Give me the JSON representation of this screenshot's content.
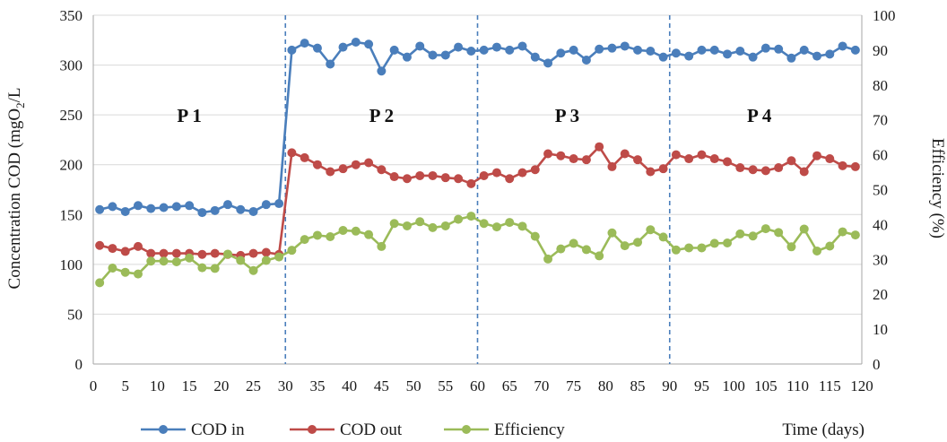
{
  "chart_data": {
    "type": "line",
    "title": "",
    "xlabel": "Time (days)",
    "ylabel": {
      "main": "Concentration COD (mgO",
      "sub": "2",
      "tail": "/L"
    },
    "y2label": "Efficiency (%)",
    "xlim": [
      0,
      120
    ],
    "ylim": [
      0,
      350
    ],
    "y2lim": [
      0,
      100
    ],
    "x_ticks": [
      0,
      5,
      10,
      15,
      20,
      25,
      30,
      35,
      40,
      45,
      50,
      55,
      60,
      65,
      70,
      75,
      80,
      85,
      90,
      95,
      100,
      105,
      110,
      115,
      120
    ],
    "x_tick_labels": [
      "0",
      "5",
      "10",
      "15",
      "20",
      "25",
      "30",
      "35",
      "40",
      "45",
      "50",
      "55",
      "60",
      "65",
      "70",
      "75",
      "80",
      "85",
      "90",
      "95",
      "100",
      "105",
      "110",
      "115",
      "120"
    ],
    "y_ticks": [
      0,
      50,
      100,
      150,
      200,
      250,
      300,
      350
    ],
    "y2_ticks": [
      0,
      10,
      20,
      30,
      40,
      50,
      60,
      70,
      80,
      90,
      100
    ],
    "grid": "horizontal",
    "legend_position": "bottom",
    "phase_dividers": [
      30,
      60,
      90
    ],
    "phase_labels": [
      {
        "label": "P 1",
        "x": 15,
        "y": 250
      },
      {
        "label": "P 2",
        "x": 45,
        "y": 250
      },
      {
        "label": "P 3",
        "x": 74,
        "y": 250
      },
      {
        "label": "P 4",
        "x": 104,
        "y": 250
      }
    ],
    "x": [
      1,
      3,
      5,
      7,
      9,
      11,
      13,
      15,
      17,
      19,
      21,
      23,
      25,
      27,
      29,
      31,
      33,
      35,
      37,
      39,
      41,
      43,
      45,
      47,
      49,
      51,
      53,
      55,
      57,
      59,
      61,
      63,
      65,
      67,
      69,
      71,
      73,
      75,
      77,
      79,
      81,
      83,
      85,
      87,
      89,
      91,
      93,
      95,
      97,
      99,
      101,
      103,
      105,
      107,
      109,
      111,
      113,
      115,
      117,
      119
    ],
    "series": [
      {
        "name": "COD in",
        "axis": "left",
        "color": "#4a7ebb",
        "values": [
          155,
          158,
          153,
          159,
          156,
          157,
          158,
          159,
          152,
          154,
          160,
          155,
          153,
          160,
          161,
          315,
          322,
          317,
          301,
          318,
          323,
          321,
          294,
          315,
          308,
          319,
          310,
          310,
          318,
          314,
          315,
          318,
          315,
          319,
          308,
          302,
          312,
          315,
          305,
          316,
          317,
          319,
          315,
          314,
          308,
          312,
          309,
          315,
          315,
          311,
          314,
          308,
          317,
          316,
          307,
          315,
          309,
          311,
          319,
          315
        ]
      },
      {
        "name": "COD out",
        "axis": "left",
        "color": "#be4b48",
        "values": [
          119,
          116,
          113,
          118,
          111,
          111,
          111,
          111,
          110,
          111,
          110,
          109,
          111,
          112,
          110,
          212,
          207,
          200,
          193,
          196,
          200,
          202,
          195,
          188,
          186,
          189,
          189,
          187,
          186,
          181,
          189,
          192,
          186,
          192,
          195,
          211,
          209,
          206,
          205,
          218,
          198,
          211,
          205,
          193,
          196,
          210,
          206,
          210,
          206,
          203,
          197,
          195,
          194,
          197,
          204,
          193,
          209,
          206,
          199,
          198
        ]
      },
      {
        "name": "Efficiency",
        "axis": "right",
        "color": "#9bbb59",
        "values": [
          23.3,
          27.5,
          26.3,
          25.8,
          29.5,
          29.5,
          29.3,
          30.4,
          27.6,
          27.4,
          31.5,
          29.7,
          26.8,
          29.7,
          30.7,
          32.6,
          35.7,
          36.9,
          36.5,
          38.3,
          38.1,
          37.1,
          33.7,
          40.3,
          39.6,
          40.8,
          39.1,
          39.6,
          41.5,
          42.4,
          40.3,
          39.3,
          40.6,
          39.5,
          36.6,
          30.1,
          33.0,
          34.6,
          32.8,
          31.0,
          37.6,
          33.9,
          34.9,
          38.5,
          36.4,
          32.7,
          33.3,
          33.3,
          34.6,
          34.7,
          37.3,
          36.7,
          38.8,
          37.7,
          33.6,
          38.7,
          32.4,
          33.8,
          37.9,
          37.0
        ]
      }
    ]
  }
}
